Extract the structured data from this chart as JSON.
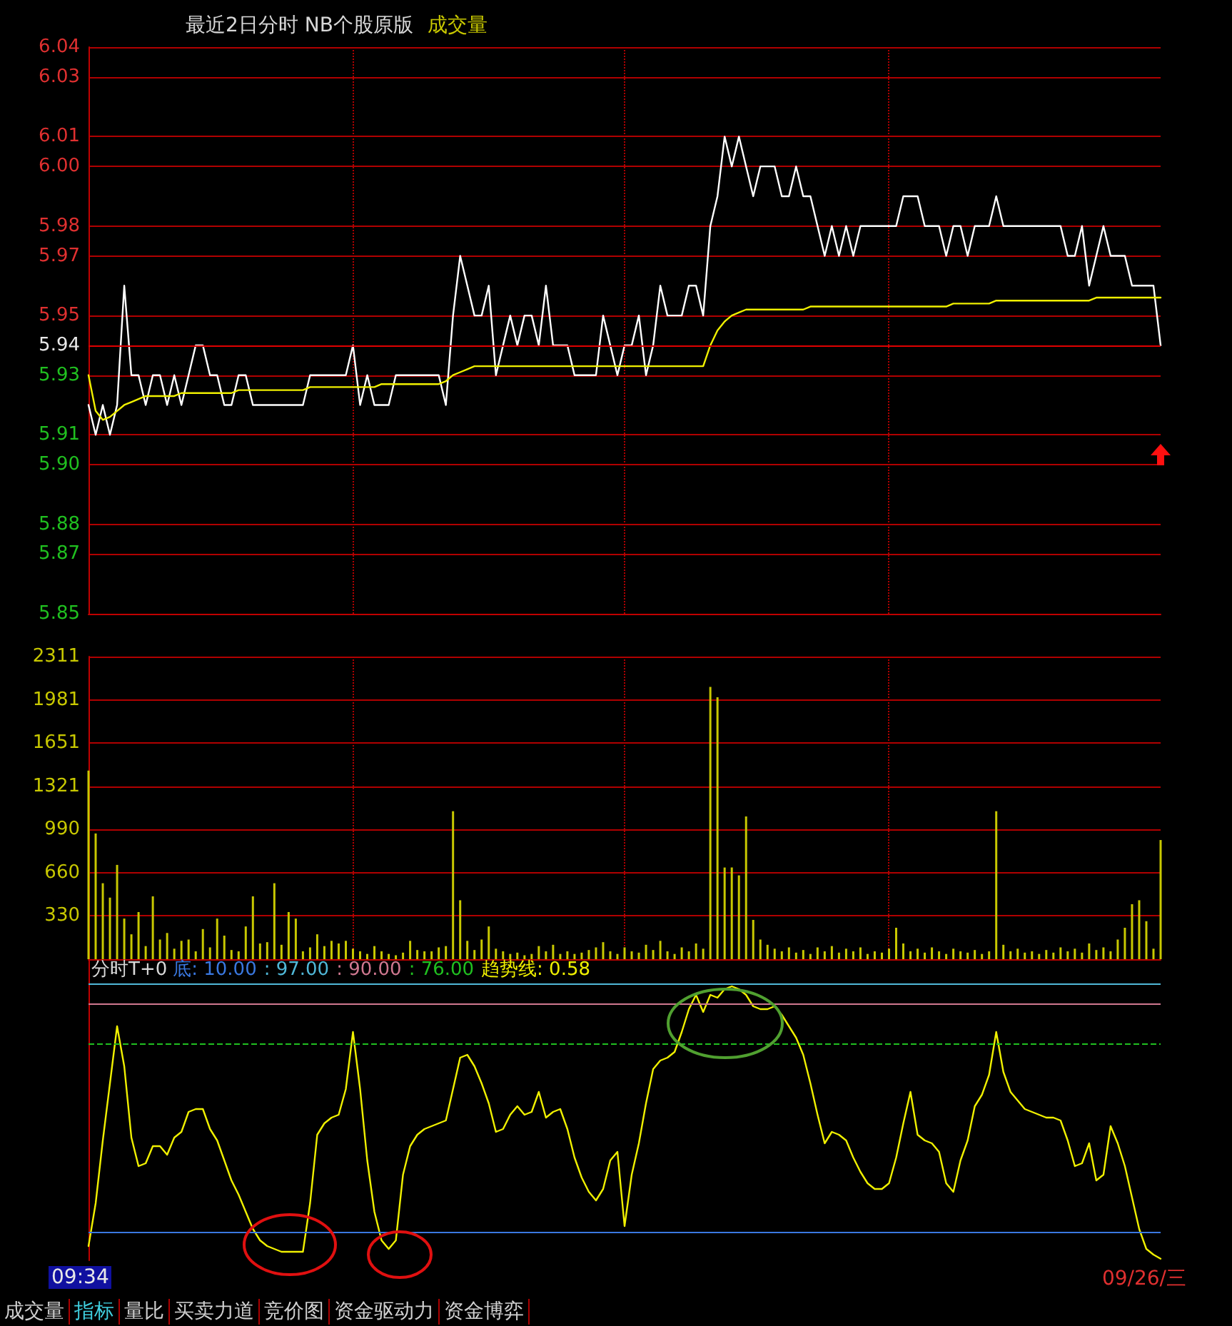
{
  "chart_data": [
    {
      "type": "line",
      "title": "最近2日分时 NB个股原版",
      "annotations": [
        "成交量"
      ],
      "grid": true,
      "tick_labels": "y",
      "categories": [
        null,
        null,
        null,
        null,
        null,
        null,
        null,
        null,
        null,
        null,
        null,
        null,
        null,
        null,
        null,
        null,
        null,
        null,
        null,
        null,
        null,
        null,
        null,
        null,
        null,
        null,
        null,
        null,
        null,
        null,
        null,
        null,
        null,
        null,
        null,
        null,
        null,
        null,
        null,
        null,
        null,
        null,
        null,
        null,
        null,
        null,
        null,
        null,
        null,
        null,
        null,
        null,
        null,
        null,
        null,
        null,
        null,
        null,
        null,
        null,
        null,
        null,
        null,
        null,
        null,
        null,
        null,
        null,
        null,
        null,
        null,
        null,
        null,
        null,
        null,
        null,
        null,
        null,
        null,
        null,
        null,
        null,
        null,
        null,
        null,
        null,
        null,
        null,
        null,
        null,
        null,
        null,
        null,
        null,
        null,
        null,
        null,
        null,
        null,
        null,
        null,
        null,
        null,
        null,
        null,
        null,
        null,
        null,
        null,
        null,
        null,
        null,
        null,
        null,
        null,
        null,
        null,
        null,
        null,
        null,
        null,
        null,
        null,
        null,
        null,
        null,
        null,
        null,
        null,
        null,
        null,
        null,
        null,
        null,
        null,
        null,
        null,
        null,
        null,
        null,
        null,
        null,
        null,
        null,
        null,
        null,
        null,
        null,
        null,
        null,
        null
      ],
      "series": [
        {
          "color": "#ffffff",
          "values": [
            5.92,
            5.91,
            5.92,
            5.91,
            5.92,
            5.96,
            5.93,
            5.93,
            5.92,
            5.93,
            5.93,
            5.92,
            5.93,
            5.92,
            5.93,
            5.94,
            5.94,
            5.93,
            5.93,
            5.92,
            5.92,
            5.93,
            5.93,
            5.92,
            5.92,
            5.92,
            5.92,
            5.92,
            5.92,
            5.92,
            5.92,
            5.93,
            5.93,
            5.93,
            5.93,
            5.93,
            5.93,
            5.94,
            5.92,
            5.93,
            5.92,
            5.92,
            5.92,
            5.93,
            5.93,
            5.93,
            5.93,
            5.93,
            5.93,
            5.93,
            5.92,
            5.95,
            5.97,
            5.96,
            5.95,
            5.95,
            5.96,
            5.93,
            5.94,
            5.95,
            5.94,
            5.95,
            5.95,
            5.94,
            5.96,
            5.94,
            5.94,
            5.94,
            5.93,
            5.93,
            5.93,
            5.93,
            5.95,
            5.94,
            5.93,
            5.94,
            5.94,
            5.95,
            5.93,
            5.94,
            5.96,
            5.95,
            5.95,
            5.95,
            5.96,
            5.96,
            5.95,
            5.98,
            5.99,
            6.01,
            6.0,
            6.01,
            6.0,
            5.99,
            6.0,
            6.0,
            6.0,
            5.99,
            5.99,
            6.0,
            5.99,
            5.99,
            5.98,
            5.97,
            5.98,
            5.97,
            5.98,
            5.97,
            5.98,
            5.98,
            5.98,
            5.98,
            5.98,
            5.98,
            5.99,
            5.99,
            5.99,
            5.98,
            5.98,
            5.98,
            5.97,
            5.98,
            5.98,
            5.97,
            5.98,
            5.98,
            5.98,
            5.99,
            5.98,
            5.98,
            5.98,
            5.98,
            5.98,
            5.98,
            5.98,
            5.98,
            5.98,
            5.97,
            5.97,
            5.98,
            5.96,
            5.97,
            5.98,
            5.97,
            5.97,
            5.97,
            5.96,
            5.96,
            5.96,
            5.96,
            5.94
          ]
        },
        {
          "color": "#f0f000",
          "values": [
            5.93,
            5.918,
            5.915,
            5.916,
            5.918,
            5.92,
            5.921,
            5.922,
            5.923,
            5.923,
            5.923,
            5.923,
            5.923,
            5.924,
            5.924,
            5.924,
            5.924,
            5.924,
            5.924,
            5.924,
            5.924,
            5.925,
            5.925,
            5.925,
            5.925,
            5.925,
            5.925,
            5.925,
            5.925,
            5.925,
            5.925,
            5.926,
            5.926,
            5.926,
            5.926,
            5.926,
            5.926,
            5.926,
            5.926,
            5.926,
            5.926,
            5.927,
            5.927,
            5.927,
            5.927,
            5.927,
            5.927,
            5.927,
            5.927,
            5.927,
            5.928,
            5.93,
            5.931,
            5.932,
            5.933,
            5.933,
            5.933,
            5.933,
            5.933,
            5.933,
            5.933,
            5.933,
            5.933,
            5.933,
            5.933,
            5.933,
            5.933,
            5.933,
            5.933,
            5.933,
            5.933,
            5.933,
            5.933,
            5.933,
            5.933,
            5.933,
            5.933,
            5.933,
            5.933,
            5.933,
            5.933,
            5.933,
            5.933,
            5.933,
            5.933,
            5.933,
            5.933,
            5.94,
            5.945,
            5.948,
            5.95,
            5.951,
            5.952,
            5.952,
            5.952,
            5.952,
            5.952,
            5.952,
            5.952,
            5.952,
            5.952,
            5.953,
            5.953,
            5.953,
            5.953,
            5.953,
            5.953,
            5.953,
            5.953,
            5.953,
            5.953,
            5.953,
            5.953,
            5.953,
            5.953,
            5.953,
            5.953,
            5.953,
            5.953,
            5.953,
            5.953,
            5.954,
            5.954,
            5.954,
            5.954,
            5.954,
            5.954,
            5.955,
            5.955,
            5.955,
            5.955,
            5.955,
            5.955,
            5.955,
            5.955,
            5.955,
            5.955,
            5.955,
            5.955,
            5.955,
            5.955,
            5.956,
            5.956,
            5.956,
            5.956,
            5.956,
            5.956,
            5.956,
            5.956,
            5.956,
            5.956
          ]
        }
      ],
      "ylim": [
        5.85,
        6.04
      ],
      "yticks": [
        6.04,
        6.03,
        6.01,
        {
          "value": 6,
          "label": "6.00"
        },
        5.98,
        5.97,
        5.95,
        5.94,
        5.93,
        5.91,
        {
          "value": 5.9,
          "label": "5.90"
        },
        5.88,
        5.87,
        5.85
      ],
      "ref_lines": [
        {
          "axis": "y",
          "value": 5.94,
          "color": "#e00000"
        }
      ]
    },
    {
      "type": "bar",
      "color": "#c8c800",
      "grid": true,
      "tick_labels": "y",
      "categories": [
        null,
        null,
        null,
        null,
        null,
        null,
        null,
        null,
        null,
        null,
        null,
        null,
        null,
        null,
        null,
        null,
        null,
        null,
        null,
        null,
        null,
        null,
        null,
        null,
        null,
        null,
        null,
        null,
        null,
        null,
        null,
        null,
        null,
        null,
        null,
        null,
        null,
        null,
        null,
        null,
        null,
        null,
        null,
        null,
        null,
        null,
        null,
        null,
        null,
        null,
        null,
        null,
        null,
        null,
        null,
        null,
        null,
        null,
        null,
        null,
        null,
        null,
        null,
        null,
        null,
        null,
        null,
        null,
        null,
        null,
        null,
        null,
        null,
        null,
        null,
        null,
        null,
        null,
        null,
        null,
        null,
        null,
        null,
        null,
        null,
        null,
        null,
        null,
        null,
        null,
        null,
        null,
        null,
        null,
        null,
        null,
        null,
        null,
        null,
        null,
        null,
        null,
        null,
        null,
        null,
        null,
        null,
        null,
        null,
        null,
        null,
        null,
        null,
        null,
        null,
        null,
        null,
        null,
        null,
        null,
        null,
        null,
        null,
        null,
        null,
        null,
        null,
        null,
        null,
        null,
        null,
        null,
        null,
        null,
        null,
        null,
        null,
        null,
        null,
        null,
        null,
        null,
        null,
        null,
        null,
        null,
        null,
        null,
        null,
        null,
        null
      ],
      "values": [
        1440,
        960,
        580,
        470,
        720,
        310,
        190,
        360,
        100,
        480,
        150,
        200,
        80,
        140,
        150,
        60,
        230,
        90,
        310,
        180,
        70,
        60,
        250,
        480,
        120,
        130,
        580,
        110,
        360,
        310,
        60,
        90,
        190,
        100,
        140,
        120,
        140,
        80,
        60,
        40,
        100,
        60,
        40,
        30,
        50,
        140,
        70,
        60,
        60,
        90,
        100,
        1130,
        450,
        140,
        70,
        150,
        250,
        80,
        60,
        40,
        50,
        30,
        40,
        100,
        60,
        110,
        40,
        60,
        40,
        50,
        70,
        90,
        130,
        60,
        40,
        90,
        60,
        50,
        110,
        70,
        140,
        60,
        40,
        90,
        60,
        120,
        80,
        2080,
        2000,
        700,
        700,
        640,
        1090,
        300,
        150,
        110,
        80,
        60,
        90,
        50,
        70,
        40,
        90,
        60,
        100,
        50,
        80,
        60,
        90,
        40,
        60,
        50,
        80,
        240,
        120,
        60,
        80,
        50,
        90,
        60,
        40,
        80,
        60,
        50,
        70,
        40,
        60,
        1130,
        110,
        60,
        80,
        50,
        60,
        40,
        70,
        50,
        90,
        60,
        80,
        50,
        120,
        70,
        90,
        60,
        150,
        240,
        420,
        450,
        290,
        80,
        910
      ],
      "ylim": [
        0,
        2311
      ],
      "yticks": [
        {
          "value": 330.1,
          "label": "330"
        },
        {
          "value": 660.3,
          "label": "660"
        },
        {
          "value": 990.4,
          "label": "990"
        },
        {
          "value": 1320.6,
          "label": "1321"
        },
        {
          "value": 1650.7,
          "label": "1651"
        },
        {
          "value": 1980.9,
          "label": "1981"
        },
        2311
      ]
    },
    {
      "type": "line",
      "title": "分时T+0",
      "tick_labels": false,
      "categories": [
        null,
        null,
        null,
        null,
        null,
        null,
        null,
        null,
        null,
        null,
        null,
        null,
        null,
        null,
        null,
        null,
        null,
        null,
        null,
        null,
        null,
        null,
        null,
        null,
        null,
        null,
        null,
        null,
        null,
        null,
        null,
        null,
        null,
        null,
        null,
        null,
        null,
        null,
        null,
        null,
        null,
        null,
        null,
        null,
        null,
        null,
        null,
        null,
        null,
        null,
        null,
        null,
        null,
        null,
        null,
        null,
        null,
        null,
        null,
        null,
        null,
        null,
        null,
        null,
        null,
        null,
        null,
        null,
        null,
        null,
        null,
        null,
        null,
        null,
        null,
        null,
        null,
        null,
        null,
        null,
        null,
        null,
        null,
        null,
        null,
        null,
        null,
        null,
        null,
        null,
        null,
        null,
        null,
        null,
        null,
        null,
        null,
        null,
        null,
        null,
        null,
        null,
        null,
        null,
        null,
        null,
        null,
        null,
        null,
        null,
        null,
        null,
        null,
        null,
        null,
        null,
        null,
        null,
        null,
        null,
        null,
        null,
        null,
        null,
        null,
        null,
        null,
        null,
        null,
        null,
        null,
        null,
        null,
        null,
        null,
        null,
        null,
        null,
        null,
        null,
        null,
        null,
        null,
        null,
        null,
        null,
        null,
        null,
        null,
        null,
        null
      ],
      "series": [
        {
          "name": "趋势线:",
          "color": "#f0f000",
          "values": [
            5,
            20,
            42,
            62,
            82,
            68,
            43,
            33,
            34,
            40,
            40,
            37,
            43,
            45,
            52,
            53,
            53,
            46,
            42,
            35,
            28,
            23,
            17,
            11,
            7,
            5,
            4,
            3,
            3,
            3,
            3,
            20,
            44,
            48,
            50,
            51,
            60,
            80,
            60,
            35,
            17,
            7,
            4,
            7,
            30,
            40,
            44,
            46,
            47,
            48,
            49,
            60,
            71,
            72,
            68,
            62,
            55,
            45,
            46,
            51,
            54,
            51,
            52,
            59,
            50,
            52,
            53,
            46,
            36,
            29,
            24,
            21,
            25,
            35,
            38,
            12,
            30,
            41,
            55,
            67,
            70,
            71,
            73,
            80,
            88,
            93,
            87,
            93,
            92,
            95,
            96,
            95,
            93,
            89,
            88,
            88,
            89,
            86,
            82,
            78,
            72,
            62,
            51,
            41,
            45,
            44,
            42,
            36,
            31,
            27,
            25,
            25,
            27,
            36,
            48,
            59,
            44,
            42,
            41,
            38,
            27,
            24,
            35,
            42,
            54,
            58,
            65,
            80,
            66,
            59,
            56,
            53,
            52,
            51,
            50,
            50,
            49,
            42,
            33,
            34,
            41,
            28,
            30,
            47,
            41,
            33,
            22,
            11,
            4,
            2,
            0.58
          ],
          "value_labels": [
            null,
            null,
            null,
            null,
            null,
            null,
            null,
            null,
            null,
            null,
            null,
            null,
            null,
            null,
            null,
            null,
            null,
            null,
            null,
            null,
            null,
            null,
            null,
            null,
            null,
            null,
            null,
            null,
            null,
            null,
            null,
            null,
            null,
            null,
            null,
            null,
            null,
            null,
            null,
            null,
            null,
            null,
            null,
            null,
            null,
            null,
            null,
            null,
            null,
            null,
            null,
            null,
            null,
            null,
            null,
            null,
            null,
            null,
            null,
            null,
            null,
            null,
            null,
            null,
            null,
            null,
            null,
            null,
            null,
            null,
            null,
            null,
            null,
            null,
            null,
            null,
            null,
            null,
            null,
            null,
            null,
            null,
            null,
            null,
            null,
            null,
            null,
            null,
            null,
            null,
            null,
            null,
            null,
            null,
            null,
            null,
            null,
            null,
            null,
            null,
            null,
            null,
            null,
            null,
            null,
            null,
            null,
            null,
            null,
            null,
            null,
            null,
            null,
            null,
            null,
            null,
            null,
            null,
            null,
            null,
            null,
            null,
            null,
            null,
            null,
            null,
            null,
            null,
            null,
            null,
            null,
            null,
            null,
            null,
            null,
            null,
            null,
            null,
            null,
            null,
            null,
            null,
            null,
            null,
            null,
            null,
            null,
            null,
            null,
            null,
            "0.58"
          ]
        }
      ],
      "ylim": [
        0,
        105
      ],
      "ref_lines": [
        {
          "axis": "y",
          "value": 10,
          "label": "底: 10.00",
          "color": "#3a78e0"
        },
        {
          "axis": "y",
          "value": 97,
          "label": ": 97.00",
          "color": "#50b8d8"
        },
        {
          "axis": "y",
          "value": 90,
          "label": ": 90.00",
          "color": "#d07890"
        },
        {
          "axis": "y",
          "value": 76,
          "label": ": 76.00",
          "color": "#20c020",
          "line_style": "dashed"
        }
      ],
      "annotations": [
        "09:34",
        "09/26/三",
        "成交量",
        "指标",
        "量比",
        "买卖力道",
        "竞价图",
        "资金驱动力",
        "资金博弈"
      ]
    }
  ]
}
